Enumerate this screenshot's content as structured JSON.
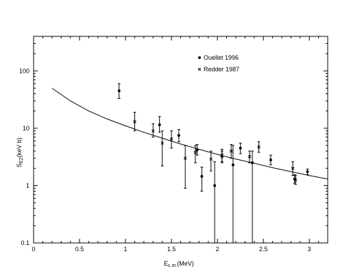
{
  "chart_data": {
    "type": "scatter",
    "xlabel": "E",
    "xlabel_sub": "c.m.",
    "xlabel_unit": "(MeV)",
    "ylabel": "S",
    "ylabel_sub": "E2",
    "ylabel_unit": "(keV b)",
    "xlim": [
      0,
      3.2
    ],
    "ylim": [
      0.1,
      400
    ],
    "yscale": "log",
    "grid": false,
    "legend_position": "top-center",
    "x_ticks": [
      {
        "value": 0,
        "label": "0"
      },
      {
        "value": 0.5,
        "label": "0.5"
      },
      {
        "value": 1,
        "label": "1"
      },
      {
        "value": 1.5,
        "label": "1.5"
      },
      {
        "value": 2,
        "label": "2"
      },
      {
        "value": 2.5,
        "label": "2.5"
      },
      {
        "value": 3,
        "label": "3"
      }
    ],
    "y_ticks": [
      {
        "value": 0.1,
        "label": "0.1"
      },
      {
        "value": 1,
        "label": "1"
      },
      {
        "value": 10,
        "label": "10"
      },
      {
        "value": 100,
        "label": "100"
      }
    ],
    "series": [
      {
        "name": "Ouellet 1996",
        "marker": "dot",
        "points": [
          {
            "x": 0.93,
            "y": 45,
            "lo": 33,
            "hi": 60
          },
          {
            "x": 1.37,
            "y": 11.5,
            "lo": 8.5,
            "hi": 16
          },
          {
            "x": 1.58,
            "y": 7.5,
            "lo": 5.8,
            "hi": 9.5
          },
          {
            "x": 1.78,
            "y": 4.2,
            "lo": 3.4,
            "hi": 5.2
          },
          {
            "x": 1.83,
            "y": 1.45,
            "lo": 0.8,
            "hi": 2.1
          },
          {
            "x": 1.97,
            "y": 1.0,
            "lo": 0.1,
            "hi": 2.6
          },
          {
            "x": 2.05,
            "y": 3.2,
            "lo": 2.6,
            "hi": 4.0
          },
          {
            "x": 2.17,
            "y": 2.3,
            "lo": 0.1,
            "hi": 5.0
          },
          {
            "x": 2.25,
            "y": 4.5,
            "lo": 3.6,
            "hi": 5.5
          },
          {
            "x": 2.38,
            "y": 2.5,
            "lo": 0.1,
            "hi": 4.0
          },
          {
            "x": 2.58,
            "y": 2.8,
            "lo": 2.3,
            "hi": 3.4
          },
          {
            "x": 2.84,
            "y": 1.3,
            "lo": 1.1,
            "hi": 1.55
          },
          {
            "x": 2.98,
            "y": 1.75,
            "lo": 1.55,
            "hi": 1.95
          }
        ]
      },
      {
        "name": "Redder 1987",
        "marker": "cross",
        "points": [
          {
            "x": 1.1,
            "y": 13,
            "lo": 9,
            "hi": 19
          },
          {
            "x": 1.3,
            "y": 9,
            "lo": 7,
            "hi": 12
          },
          {
            "x": 1.4,
            "y": 5.5,
            "lo": 2.2,
            "hi": 9
          },
          {
            "x": 1.5,
            "y": 6.5,
            "lo": 4.5,
            "hi": 9
          },
          {
            "x": 1.65,
            "y": 3.0,
            "lo": 0.9,
            "hi": 5.0
          },
          {
            "x": 1.76,
            "y": 3.8,
            "lo": 2.5,
            "hi": 5.0
          },
          {
            "x": 1.93,
            "y": 2.9,
            "lo": 1.8,
            "hi": 4.0
          },
          {
            "x": 2.05,
            "y": 3.4,
            "lo": 2.5,
            "hi": 4.3
          },
          {
            "x": 2.15,
            "y": 4.0,
            "lo": 3.0,
            "hi": 5.2
          },
          {
            "x": 2.35,
            "y": 3.2,
            "lo": 2.5,
            "hi": 4.0
          },
          {
            "x": 2.45,
            "y": 4.7,
            "lo": 3.8,
            "hi": 5.8
          },
          {
            "x": 2.82,
            "y": 2.0,
            "lo": 1.5,
            "hi": 2.6
          },
          {
            "x": 2.85,
            "y": 1.25,
            "lo": 1.05,
            "hi": 1.5
          }
        ]
      }
    ],
    "fit_curve": {
      "x": [
        0.2,
        0.4,
        0.6,
        0.8,
        1.0,
        1.2,
        1.4,
        1.6,
        1.8,
        2.0,
        2.2,
        2.4,
        2.6,
        2.8,
        3.0,
        3.2
      ],
      "y": [
        50,
        30,
        20,
        14.5,
        11,
        8.5,
        6.7,
        5.3,
        4.3,
        3.5,
        2.9,
        2.45,
        2.05,
        1.75,
        1.5,
        1.3
      ]
    }
  }
}
